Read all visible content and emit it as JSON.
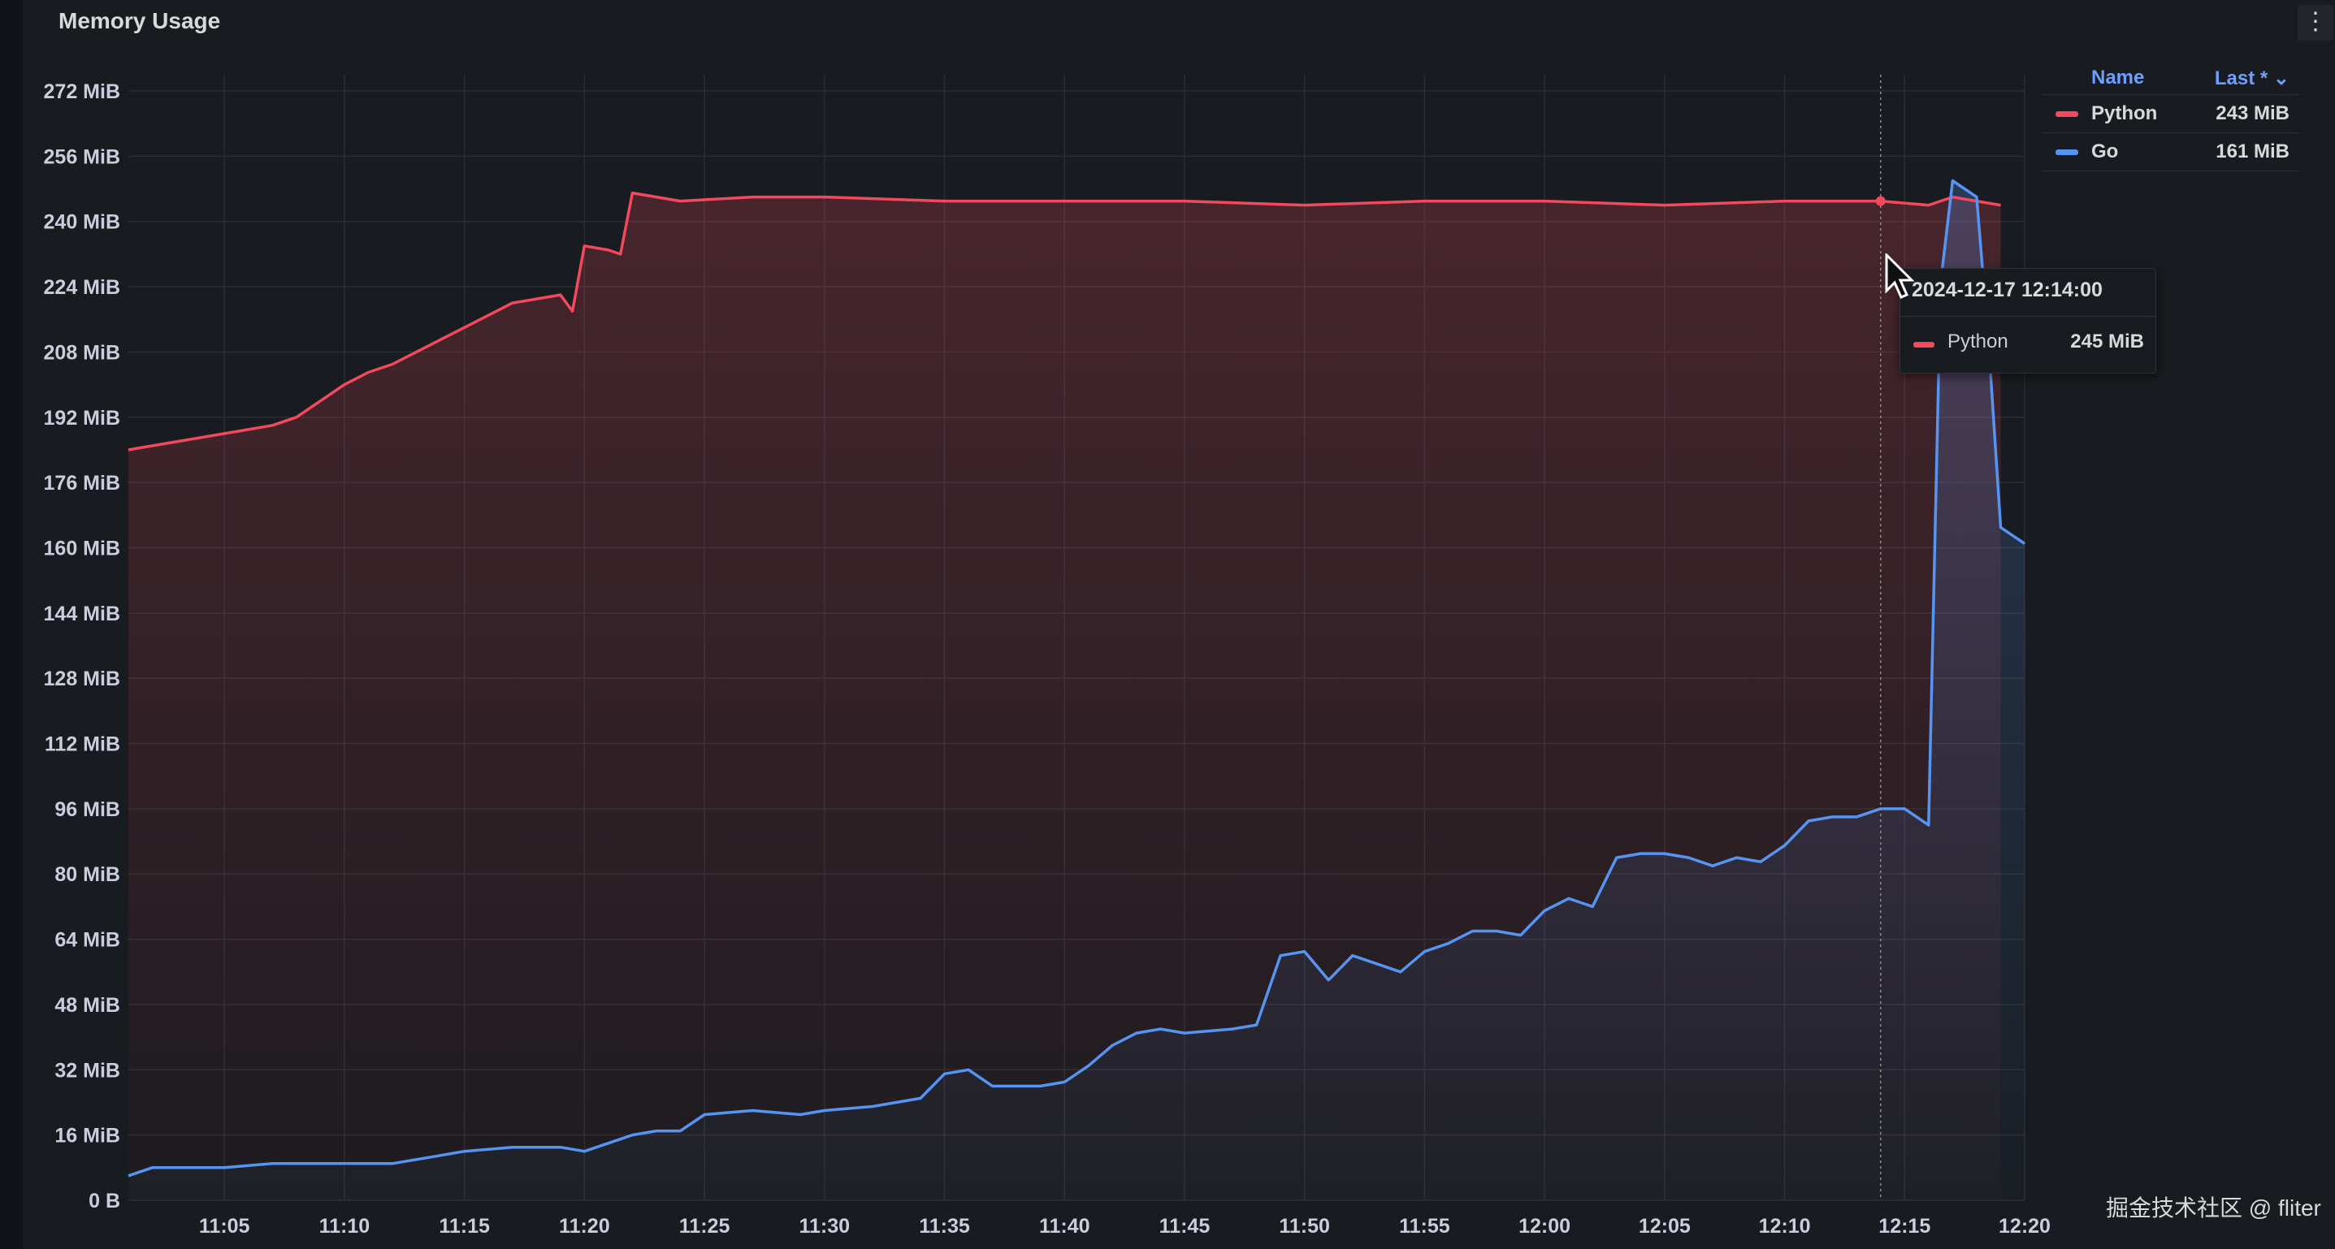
{
  "panel": {
    "title": "Memory Usage",
    "menu_icon": "vertical-ellipsis-icon"
  },
  "legend": {
    "header_name": "Name",
    "header_last": "Last * ⌄",
    "rows": [
      {
        "name": "Python",
        "value": "243 MiB",
        "color": "#f2495c"
      },
      {
        "name": "Go",
        "value": "161 MiB",
        "color": "#5794f2"
      }
    ]
  },
  "tooltip": {
    "time": "2024-12-17 12:14:00",
    "series_name": "Python",
    "series_value": "245 MiB",
    "color": "#f2495c"
  },
  "watermark": "掘金技术社区 @ fliter",
  "chart_data": {
    "type": "area",
    "title": "Memory Usage",
    "xlabel": "",
    "ylabel": "",
    "x_unit": "time (HH:MM)",
    "y_unit": "MiB",
    "xlim": [
      "11:01",
      "12:20"
    ],
    "ylim": [
      0,
      272
    ],
    "x_tick_labels": [
      "11:05",
      "11:10",
      "11:15",
      "11:20",
      "11:25",
      "11:30",
      "11:35",
      "11:40",
      "11:45",
      "11:50",
      "11:55",
      "12:00",
      "12:05",
      "12:10",
      "12:15",
      "12:20"
    ],
    "y_tick_labels": [
      "0 B",
      "16 MiB",
      "32 MiB",
      "48 MiB",
      "64 MiB",
      "80 MiB",
      "96 MiB",
      "112 MiB",
      "128 MiB",
      "144 MiB",
      "160 MiB",
      "176 MiB",
      "192 MiB",
      "208 MiB",
      "224 MiB",
      "240 MiB",
      "256 MiB",
      "272 MiB"
    ],
    "grid": true,
    "legend_position": "top-right",
    "hover_time": "12:14",
    "series": [
      {
        "name": "Python",
        "color": "#f2495c",
        "points": [
          [
            "11:01",
            184
          ],
          [
            "11:03",
            186
          ],
          [
            "11:05",
            188
          ],
          [
            "11:07",
            190
          ],
          [
            "11:08",
            192
          ],
          [
            "11:09",
            196
          ],
          [
            "11:10",
            200
          ],
          [
            "11:11",
            203
          ],
          [
            "11:12",
            205
          ],
          [
            "11:13",
            208
          ],
          [
            "11:14",
            211
          ],
          [
            "11:15",
            214
          ],
          [
            "11:16",
            217
          ],
          [
            "11:17",
            220
          ],
          [
            "11:18",
            221
          ],
          [
            "11:19",
            222
          ],
          [
            "11:19.5",
            218
          ],
          [
            "11:20",
            234
          ],
          [
            "11:21",
            233
          ],
          [
            "11:21.5",
            232
          ],
          [
            "11:22",
            247
          ],
          [
            "11:24",
            245
          ],
          [
            "11:27",
            246
          ],
          [
            "11:30",
            246
          ],
          [
            "11:35",
            245
          ],
          [
            "11:40",
            245
          ],
          [
            "11:45",
            245
          ],
          [
            "11:50",
            244
          ],
          [
            "11:55",
            245
          ],
          [
            "12:00",
            245
          ],
          [
            "12:05",
            244
          ],
          [
            "12:10",
            245
          ],
          [
            "12:14",
            245
          ],
          [
            "12:16",
            244
          ],
          [
            "12:17",
            246
          ],
          [
            "12:18",
            245
          ],
          [
            "12:19",
            244
          ]
        ]
      },
      {
        "name": "Go",
        "color": "#5794f2",
        "points": [
          [
            "11:01",
            6
          ],
          [
            "11:02",
            8
          ],
          [
            "11:05",
            8
          ],
          [
            "11:07",
            9
          ],
          [
            "11:10",
            9
          ],
          [
            "11:12",
            9
          ],
          [
            "11:13",
            10
          ],
          [
            "11:14",
            11
          ],
          [
            "11:15",
            12
          ],
          [
            "11:17",
            13
          ],
          [
            "11:19",
            13
          ],
          [
            "11:20",
            12
          ],
          [
            "11:21",
            14
          ],
          [
            "11:22",
            16
          ],
          [
            "11:23",
            17
          ],
          [
            "11:24",
            17
          ],
          [
            "11:25",
            21
          ],
          [
            "11:27",
            22
          ],
          [
            "11:29",
            21
          ],
          [
            "11:30",
            22
          ],
          [
            "11:32",
            23
          ],
          [
            "11:34",
            25
          ],
          [
            "11:35",
            31
          ],
          [
            "11:36",
            32
          ],
          [
            "11:37",
            28
          ],
          [
            "11:39",
            28
          ],
          [
            "11:40",
            29
          ],
          [
            "11:41",
            33
          ],
          [
            "11:42",
            38
          ],
          [
            "11:43",
            41
          ],
          [
            "11:44",
            42
          ],
          [
            "11:45",
            41
          ],
          [
            "11:47",
            42
          ],
          [
            "11:48",
            43
          ],
          [
            "11:49",
            60
          ],
          [
            "11:50",
            61
          ],
          [
            "11:51",
            54
          ],
          [
            "11:52",
            60
          ],
          [
            "11:53",
            58
          ],
          [
            "11:54",
            56
          ],
          [
            "11:55",
            61
          ],
          [
            "11:56",
            63
          ],
          [
            "11:57",
            66
          ],
          [
            "11:58",
            66
          ],
          [
            "11:59",
            65
          ],
          [
            "12:00",
            71
          ],
          [
            "12:01",
            74
          ],
          [
            "12:02",
            72
          ],
          [
            "12:03",
            84
          ],
          [
            "12:04",
            85
          ],
          [
            "12:05",
            85
          ],
          [
            "12:06",
            84
          ],
          [
            "12:07",
            82
          ],
          [
            "12:08",
            84
          ],
          [
            "12:09",
            83
          ],
          [
            "12:10",
            87
          ],
          [
            "12:11",
            93
          ],
          [
            "12:12",
            94
          ],
          [
            "12:13",
            94
          ],
          [
            "12:14",
            96
          ],
          [
            "12:15",
            96
          ],
          [
            "12:16",
            92
          ],
          [
            "12:16.5",
            225
          ],
          [
            "12:17",
            250
          ],
          [
            "12:18",
            246
          ],
          [
            "12:18.5",
            210
          ],
          [
            "12:19",
            165
          ],
          [
            "12:20",
            161
          ]
        ]
      }
    ]
  }
}
